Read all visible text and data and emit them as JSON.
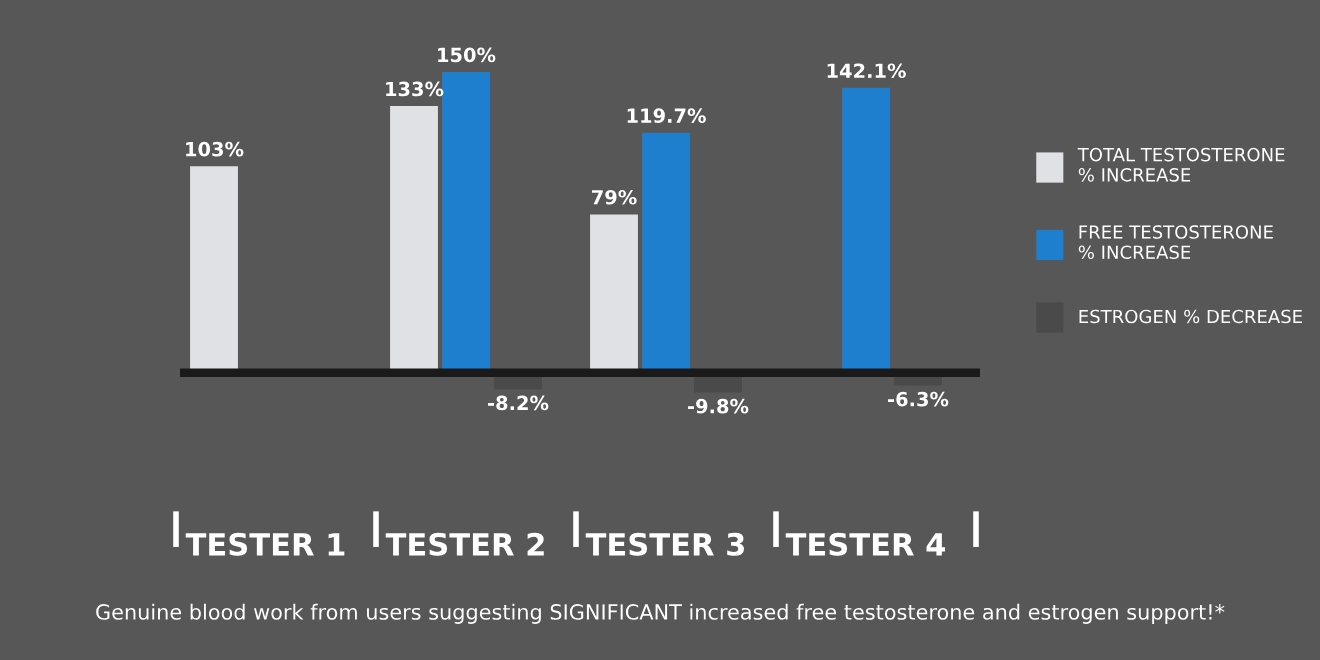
{
  "chart_data": {
    "type": "bar",
    "categories": [
      "TESTER 1",
      "TESTER 2",
      "TESTER 3",
      "TESTER 4"
    ],
    "series": [
      {
        "name": "TOTAL TESTOSTERONE\n% INCREASE",
        "color": "#dfe1e5",
        "values": [
          103,
          133,
          79,
          null
        ],
        "value_labels": [
          "103%",
          "133%",
          "79%",
          null
        ]
      },
      {
        "name": "FREE TESTOSTERONE\n% INCREASE",
        "color": "#1f7fcf",
        "values": [
          null,
          150,
          119.7,
          142.1
        ],
        "value_labels": [
          null,
          "150%",
          "119.7%",
          "142.1%"
        ]
      },
      {
        "name": "ESTROGEN % DECREASE",
        "color": "#4a4a4a",
        "values": [
          null,
          -8.2,
          -9.8,
          -6.3
        ],
        "value_labels": [
          null,
          "-8.2%",
          "-9.8%",
          "-6.3%"
        ]
      }
    ],
    "legend": "right",
    "annotations": [
      "Genuine blood work from users suggesting SIGNIFICANT increased free testosterone and estrogen support!*"
    ]
  }
}
